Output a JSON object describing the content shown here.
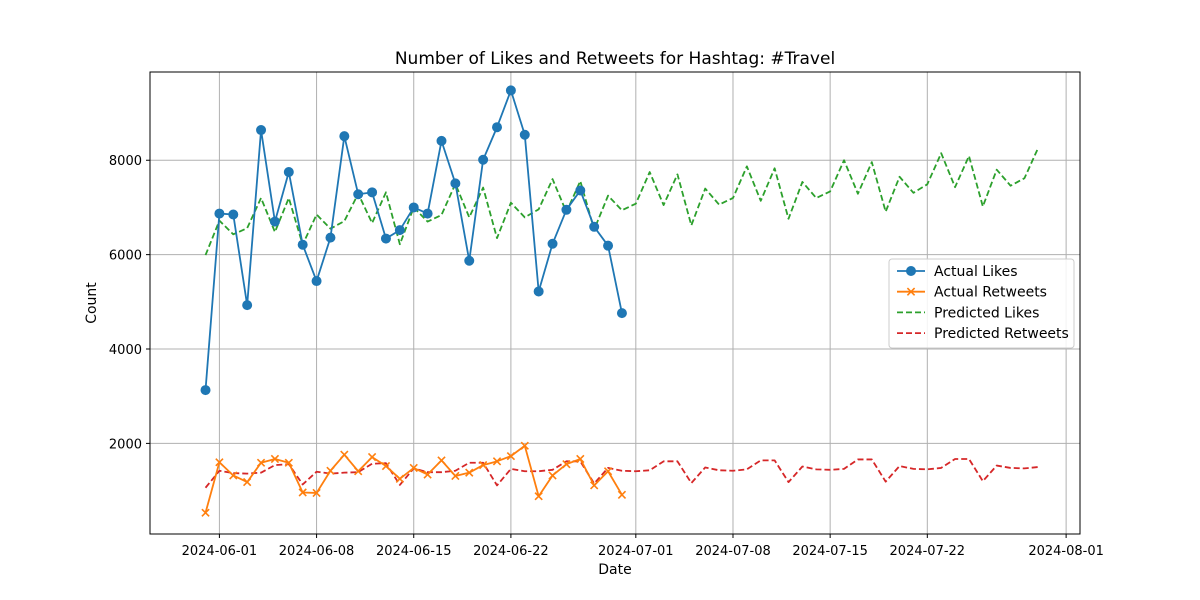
{
  "chart_data": {
    "type": "line",
    "title": "Number of Likes and Retweets for Hashtag: #Travel",
    "xlabel": "Date",
    "ylabel": "Count",
    "grid": true,
    "legend_position": "center-right",
    "x_range": [
      "2024-05-27",
      "2024-08-02"
    ],
    "y_range": [
      80,
      9870
    ],
    "x_ticks": [
      "2024-06-01",
      "2024-06-08",
      "2024-06-15",
      "2024-06-22",
      "2024-07-01",
      "2024-07-08",
      "2024-07-15",
      "2024-07-22",
      "2024-08-01"
    ],
    "y_ticks": [
      2000,
      4000,
      6000,
      8000
    ],
    "actual_dates": [
      "2024-05-31",
      "2024-06-01",
      "2024-06-02",
      "2024-06-03",
      "2024-06-04",
      "2024-06-05",
      "2024-06-06",
      "2024-06-07",
      "2024-06-08",
      "2024-06-09",
      "2024-06-10",
      "2024-06-11",
      "2024-06-12",
      "2024-06-13",
      "2024-06-14",
      "2024-06-15",
      "2024-06-16",
      "2024-06-17",
      "2024-06-18",
      "2024-06-19",
      "2024-06-20",
      "2024-06-21",
      "2024-06-22",
      "2024-06-23",
      "2024-06-24",
      "2024-06-25",
      "2024-06-26",
      "2024-06-27",
      "2024-06-28",
      "2024-06-29",
      "2024-06-30"
    ],
    "predicted_dates": [
      "2024-05-31",
      "2024-06-01",
      "2024-06-02",
      "2024-06-03",
      "2024-06-04",
      "2024-06-05",
      "2024-06-06",
      "2024-06-07",
      "2024-06-08",
      "2024-06-09",
      "2024-06-10",
      "2024-06-11",
      "2024-06-12",
      "2024-06-13",
      "2024-06-14",
      "2024-06-15",
      "2024-06-16",
      "2024-06-17",
      "2024-06-18",
      "2024-06-19",
      "2024-06-20",
      "2024-06-21",
      "2024-06-22",
      "2024-06-23",
      "2024-06-24",
      "2024-06-25",
      "2024-06-26",
      "2024-06-27",
      "2024-06-28",
      "2024-06-29",
      "2024-06-30",
      "2024-07-01",
      "2024-07-02",
      "2024-07-03",
      "2024-07-04",
      "2024-07-05",
      "2024-07-06",
      "2024-07-07",
      "2024-07-08",
      "2024-07-09",
      "2024-07-10",
      "2024-07-11",
      "2024-07-12",
      "2024-07-13",
      "2024-07-14",
      "2024-07-15",
      "2024-07-16",
      "2024-07-17",
      "2024-07-18",
      "2024-07-19",
      "2024-07-20",
      "2024-07-21",
      "2024-07-22",
      "2024-07-23",
      "2024-07-24",
      "2024-07-25",
      "2024-07-26",
      "2024-07-27",
      "2024-07-28",
      "2024-07-29",
      "2024-07-30"
    ],
    "series": [
      {
        "name": "Actual Likes",
        "color": "#1f77b4",
        "marker": "circle",
        "dash": "solid",
        "values": [
          3130,
          6870,
          6850,
          4930,
          8640,
          6700,
          7750,
          6210,
          5440,
          6360,
          8510,
          7280,
          7320,
          6340,
          6520,
          7000,
          6870,
          8410,
          7510,
          5870,
          8010,
          8700,
          9480,
          8540,
          5220,
          6230,
          6950,
          7360,
          6590,
          6190,
          4760
        ]
      },
      {
        "name": "Actual Retweets",
        "color": "#ff7f0e",
        "marker": "x",
        "dash": "solid",
        "values": [
          530,
          1600,
          1320,
          1180,
          1590,
          1670,
          1590,
          960,
          950,
          1420,
          1760,
          1410,
          1710,
          1520,
          1250,
          1480,
          1340,
          1640,
          1310,
          1380,
          1540,
          1620,
          1730,
          1950,
          880,
          1320,
          1560,
          1670,
          1110,
          1410,
          910
        ]
      },
      {
        "name": "Predicted Likes",
        "color": "#2ca02c",
        "marker": "none",
        "dash": "dashed",
        "values": [
          5990,
          6720,
          6430,
          6560,
          7200,
          6480,
          7200,
          6210,
          6850,
          6550,
          6710,
          7290,
          6670,
          7320,
          6220,
          7000,
          6700,
          6840,
          7500,
          6790,
          7420,
          6350,
          7100,
          6790,
          6960,
          7600,
          6900,
          7560,
          6530,
          7250,
          6940,
          7080,
          7750,
          7050,
          7700,
          6620,
          7400,
          7060,
          7200,
          7870,
          7140,
          7830,
          6760,
          7540,
          7200,
          7340,
          8000,
          7290,
          7960,
          6910,
          7650,
          7310,
          7490,
          8150,
          7430,
          8090,
          7020,
          7800,
          7460,
          7620,
          8270
        ]
      },
      {
        "name": "Predicted Retweets",
        "color": "#d62728",
        "marker": "none",
        "dash": "dashed",
        "values": [
          1060,
          1420,
          1370,
          1360,
          1380,
          1540,
          1560,
          1130,
          1400,
          1360,
          1380,
          1390,
          1570,
          1580,
          1120,
          1470,
          1390,
          1390,
          1420,
          1590,
          1590,
          1110,
          1460,
          1410,
          1410,
          1440,
          1620,
          1620,
          1150,
          1480,
          1420,
          1410,
          1430,
          1620,
          1620,
          1160,
          1490,
          1430,
          1420,
          1450,
          1640,
          1640,
          1180,
          1510,
          1450,
          1440,
          1460,
          1660,
          1660,
          1190,
          1520,
          1460,
          1450,
          1480,
          1670,
          1670,
          1200,
          1530,
          1480,
          1470,
          1500
        ]
      }
    ]
  }
}
